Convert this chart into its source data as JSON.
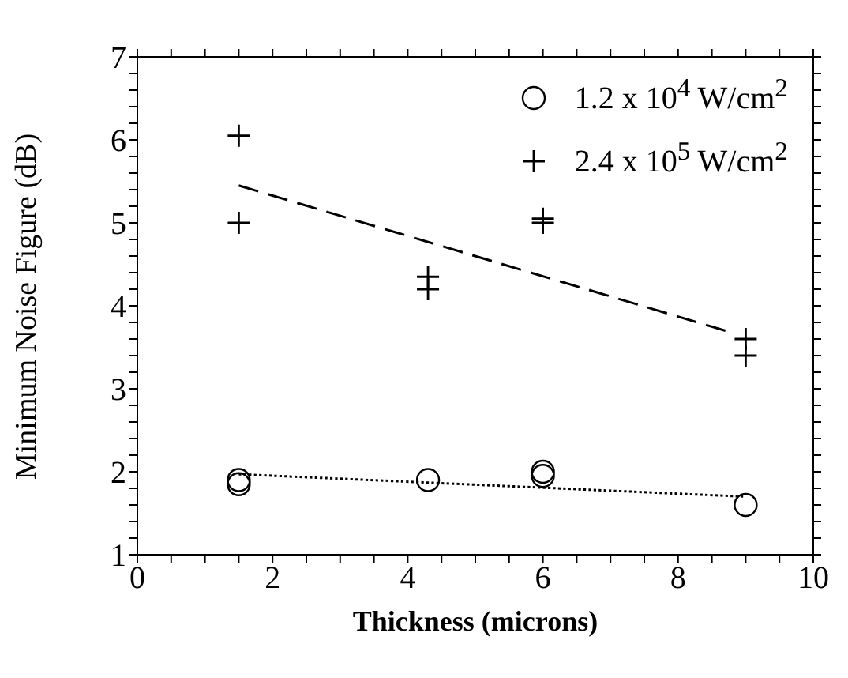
{
  "chart_data": {
    "type": "scatter",
    "xlabel": "Thickness (microns)",
    "ylabel": "Minimum Noise Figure (dB)",
    "xlim": [
      0,
      10
    ],
    "ylim": [
      1,
      7
    ],
    "xticks": [
      0,
      {
        "value": 0.5,
        "label": null
      },
      {
        "value": 1,
        "label": null
      },
      {
        "value": 1.5,
        "label": null
      },
      2,
      {
        "value": 2.5,
        "label": null
      },
      {
        "value": 3,
        "label": null
      },
      {
        "value": 3.5,
        "label": null
      },
      4,
      {
        "value": 4.5,
        "label": null
      },
      {
        "value": 5,
        "label": null
      },
      {
        "value": 5.5,
        "label": null
      },
      6,
      {
        "value": 6.5,
        "label": null
      },
      {
        "value": 7,
        "label": null
      },
      {
        "value": 7.5,
        "label": null
      },
      8,
      {
        "value": 8.5,
        "label": null
      },
      {
        "value": 9,
        "label": null
      },
      {
        "value": 9.5,
        "label": null
      },
      10
    ],
    "yticks": [
      1,
      {
        "value": 1.2,
        "label": null
      },
      {
        "value": 1.4,
        "label": null
      },
      {
        "value": 1.6,
        "label": null
      },
      {
        "value": 1.8,
        "label": null
      },
      2,
      {
        "value": 2.2,
        "label": null
      },
      {
        "value": 2.4,
        "label": null
      },
      {
        "value": 2.6,
        "label": null
      },
      {
        "value": 2.8,
        "label": null
      },
      3,
      {
        "value": 3.2,
        "label": null
      },
      {
        "value": 3.4,
        "label": null
      },
      {
        "value": 3.6,
        "label": null
      },
      {
        "value": 3.8,
        "label": null
      },
      4,
      {
        "value": 4.2,
        "label": null
      },
      {
        "value": 4.4,
        "label": null
      },
      {
        "value": 4.6,
        "label": null
      },
      {
        "value": 4.8,
        "label": null
      },
      5,
      {
        "value": 5.2,
        "label": null
      },
      {
        "value": 5.4,
        "label": null
      },
      {
        "value": 5.6,
        "label": null
      },
      {
        "value": 5.8,
        "label": null
      },
      6,
      {
        "value": 6.2,
        "label": null
      },
      {
        "value": 6.4,
        "label": null
      },
      {
        "value": 6.6,
        "label": null
      },
      {
        "value": 6.8,
        "label": null
      },
      7
    ],
    "legend": "top right",
    "series": [
      {
        "name": "1.2 x 10$^{4}$ W/cm$^{2}$",
        "color": "#000000",
        "marker": "circle",
        "x": [
          1.5,
          1.5,
          4.3,
          6,
          6,
          9
        ],
        "values": [
          1.85,
          1.9,
          1.9,
          2.0,
          1.95,
          1.6
        ]
      },
      {
        "name": "2.4 x 10$^{5}$ W/cm$^{2}$",
        "color": "#000000",
        "marker": "cross",
        "x": [
          1.5,
          1.5,
          4.3,
          4.3,
          6,
          6,
          9,
          9
        ],
        "values": [
          6.05,
          5.0,
          4.35,
          4.2,
          5.05,
          5.0,
          3.6,
          3.4
        ]
      },
      {
        "type": "line",
        "color": "#000000",
        "line_style": "dotted",
        "x": [
          1.5,
          9
        ],
        "values": [
          1.97,
          1.7
        ]
      },
      {
        "type": "line",
        "color": "#000000",
        "line_style": "dashed",
        "x": [
          1.5,
          8.7
        ],
        "values": [
          5.45,
          3.7
        ]
      }
    ]
  }
}
